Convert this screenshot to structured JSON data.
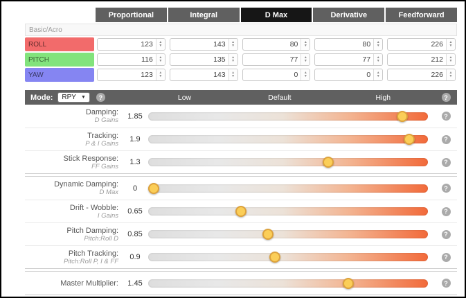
{
  "icons": {
    "help": "?",
    "caret_down": "▼",
    "spinner_up": "▲",
    "spinner_down": "▼"
  },
  "colors": {
    "header_bg": "#606060",
    "header_highlight_bg": "#161616",
    "track_gradient_start": "#dedede",
    "track_gradient_end": "#f26a3a",
    "knob_fill": "#fbce58",
    "knob_border": "#dda23c",
    "roll_row": "#f26b6b",
    "pitch_row": "#82e37c",
    "yaw_row": "#8585f2"
  },
  "pid_table": {
    "columns": [
      "Proportional",
      "Integral",
      "D Max",
      "Derivative",
      "Feedforward"
    ],
    "highlighted_column": "D Max",
    "section_label": "Basic/Acro",
    "rows": [
      {
        "axis": "ROLL",
        "color": "#f26b6b",
        "values": [
          123,
          143,
          80,
          80,
          226
        ]
      },
      {
        "axis": "PITCH",
        "color": "#82e37c",
        "values": [
          116,
          135,
          77,
          77,
          212
        ]
      },
      {
        "axis": "YAW",
        "color": "#8585f2",
        "values": [
          123,
          143,
          0,
          0,
          226
        ]
      }
    ]
  },
  "slider_section": {
    "mode_label": "Mode:",
    "mode_value": "RPY",
    "scale_labels": [
      "Low",
      "Default",
      "High"
    ],
    "range": {
      "min": 0,
      "max": 2
    },
    "sliders": [
      {
        "label": "Damping:",
        "sublabel": "D Gains",
        "value": 1.85
      },
      {
        "label": "Tracking:",
        "sublabel": "P & I Gains",
        "value": 1.9
      },
      {
        "label": "Stick Response:",
        "sublabel": "FF Gains",
        "value": 1.3
      },
      {
        "label": "Dynamic Damping:",
        "sublabel": "D Max",
        "value": 0
      },
      {
        "label": "Drift - Wobble:",
        "sublabel": "I Gains",
        "value": 0.65
      },
      {
        "label": "Pitch Damping:",
        "sublabel": "Pitch:Roll D",
        "value": 0.85
      },
      {
        "label": "Pitch Tracking:",
        "sublabel": "Pitch:Roll P, I & FF",
        "value": 0.9
      },
      {
        "label": "Master Multiplier:",
        "sublabel": "",
        "value": 1.45
      }
    ]
  }
}
